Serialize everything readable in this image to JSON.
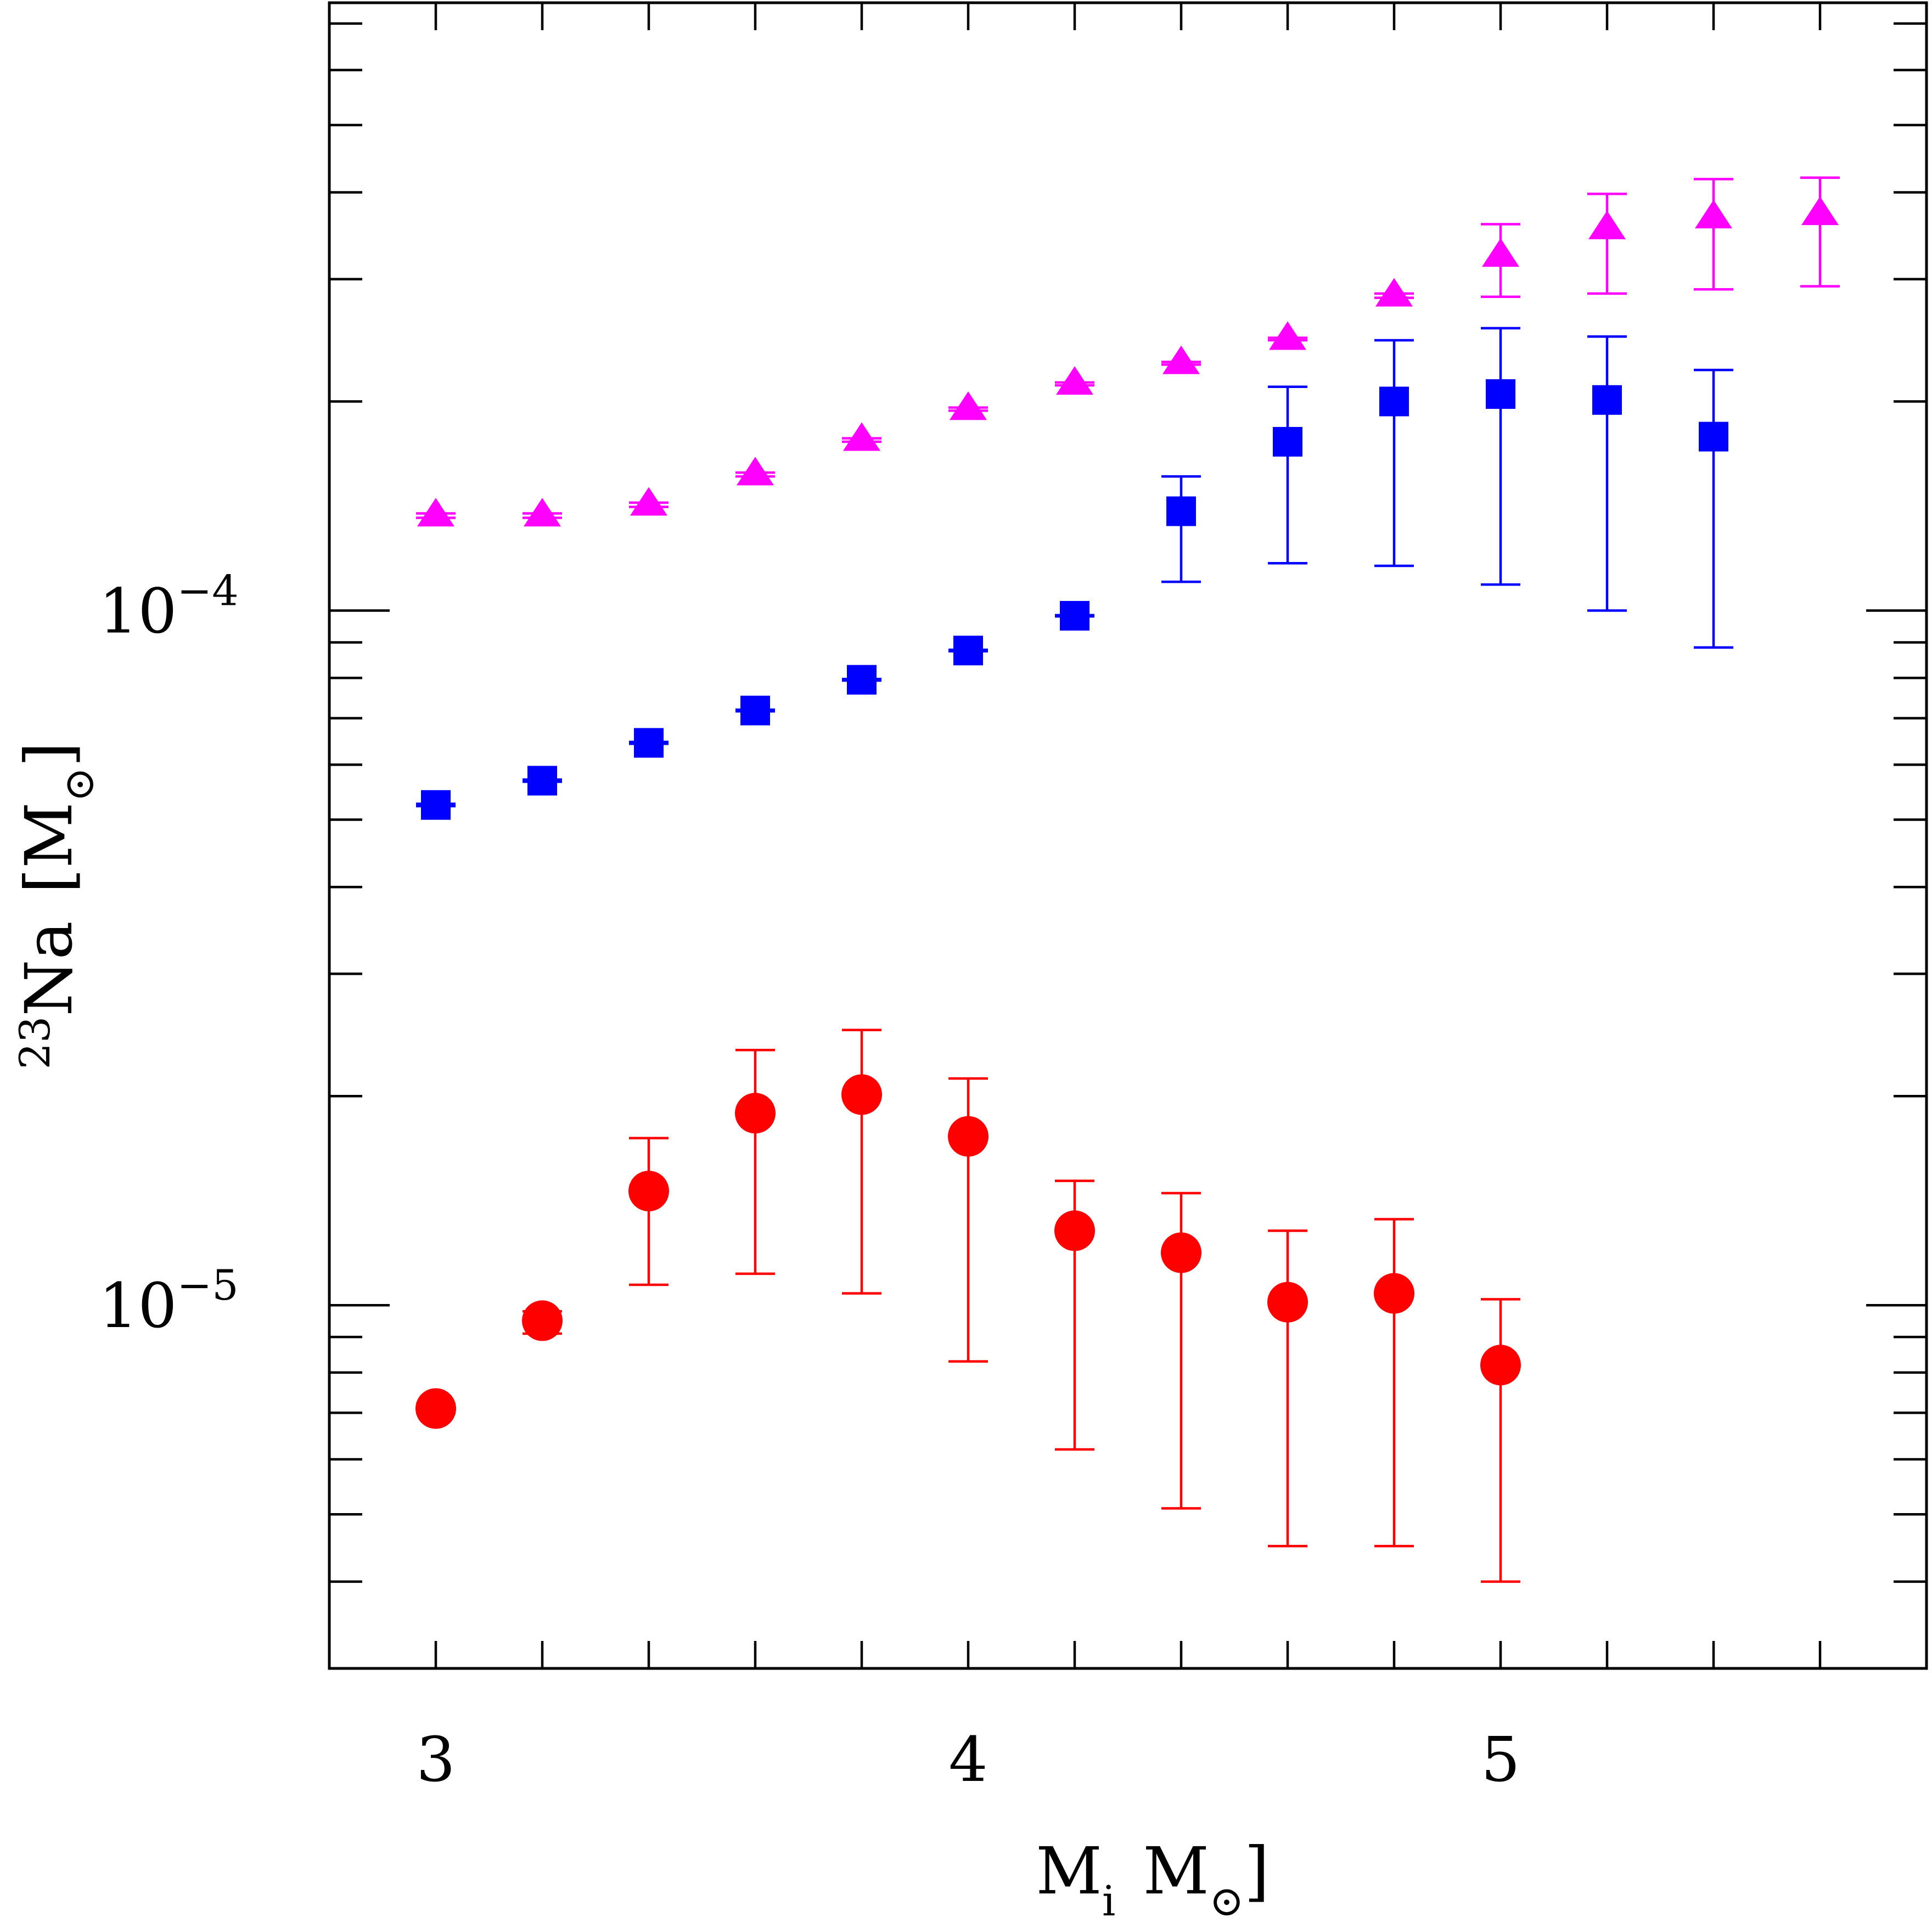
{
  "chart_data": {
    "type": "scatter",
    "title": "",
    "xlabel": {
      "main": "M",
      "sub": "i",
      "unit_main": "M",
      "unit_symbol": "⊙",
      "bracket_close": "]"
    },
    "ylabel": {
      "isotope_mass": "23",
      "element": "Na",
      "bracket_open": "[",
      "unit_main": "M",
      "unit_symbol": "⊙",
      "bracket_close": "]"
    },
    "xlim": [
      2.8,
      5.8
    ],
    "ylim": [
      3e-06,
      0.00075
    ],
    "yscale": "log",
    "x_ticks": [
      {
        "value": 3,
        "label": "3"
      },
      {
        "value": 4,
        "label": "4"
      },
      {
        "value": 5,
        "label": "5"
      }
    ],
    "y_ticks": [
      {
        "value": 1e-05,
        "base": "10",
        "exp": "−5"
      },
      {
        "value": 0.0001,
        "base": "10",
        "exp": "−4"
      }
    ],
    "grid": false,
    "series": [
      {
        "name": "triangles",
        "marker": "triangle",
        "color": "#ff00ff",
        "points": [
          {
            "x": 3.0,
            "y": 0.000137,
            "lo": 0.000136,
            "hi": 0.000138
          },
          {
            "x": 3.2,
            "y": 0.000137,
            "lo": 0.000136,
            "hi": 0.000138
          },
          {
            "x": 3.4,
            "y": 0.000142,
            "lo": 0.000141,
            "hi": 0.000143
          },
          {
            "x": 3.6,
            "y": 0.000157,
            "lo": 0.000156,
            "hi": 0.000158
          },
          {
            "x": 3.8,
            "y": 0.000176,
            "lo": 0.000175,
            "hi": 0.000177
          },
          {
            "x": 4.0,
            "y": 0.000195,
            "lo": 0.000194,
            "hi": 0.000196
          },
          {
            "x": 4.2,
            "y": 0.000212,
            "lo": 0.000211,
            "hi": 0.000213
          },
          {
            "x": 4.4,
            "y": 0.000227,
            "lo": 0.000226,
            "hi": 0.000228
          },
          {
            "x": 4.6,
            "y": 0.000246,
            "lo": 0.000245,
            "hi": 0.000247
          },
          {
            "x": 4.8,
            "y": 0.000284,
            "lo": 0.000282,
            "hi": 0.000286
          },
          {
            "x": 5.0,
            "y": 0.000324,
            "lo": 0.000283,
            "hi": 0.00036
          },
          {
            "x": 5.2,
            "y": 0.000355,
            "lo": 0.000286,
            "hi": 0.000398
          },
          {
            "x": 5.4,
            "y": 0.000368,
            "lo": 0.00029,
            "hi": 0.000418
          },
          {
            "x": 5.6,
            "y": 0.000372,
            "lo": 0.000293,
            "hi": 0.00042
          }
        ]
      },
      {
        "name": "squares",
        "marker": "square",
        "color": "#0000ff",
        "points": [
          {
            "x": 3.0,
            "y": 5.25e-05,
            "lo": 5.23e-05,
            "hi": 5.27e-05
          },
          {
            "x": 3.2,
            "y": 5.69e-05,
            "lo": 5.67e-05,
            "hi": 5.71e-05
          },
          {
            "x": 3.4,
            "y": 6.45e-05,
            "lo": 6.43e-05,
            "hi": 6.47e-05
          },
          {
            "x": 3.6,
            "y": 7.18e-05,
            "lo": 7.16e-05,
            "hi": 7.2e-05
          },
          {
            "x": 3.8,
            "y": 7.95e-05,
            "lo": 7.93e-05,
            "hi": 7.97e-05
          },
          {
            "x": 4.0,
            "y": 8.76e-05,
            "lo": 8.74e-05,
            "hi": 8.78e-05
          },
          {
            "x": 4.2,
            "y": 9.83e-05,
            "lo": 9.81e-05,
            "hi": 9.85e-05
          },
          {
            "x": 4.4,
            "y": 0.000139,
            "lo": 0.00011,
            "hi": 0.000156
          },
          {
            "x": 4.6,
            "y": 0.000175,
            "lo": 0.000117,
            "hi": 0.00021
          },
          {
            "x": 4.8,
            "y": 0.0002,
            "lo": 0.000116,
            "hi": 0.000245
          },
          {
            "x": 5.0,
            "y": 0.000205,
            "lo": 0.000109,
            "hi": 0.000255
          },
          {
            "x": 5.2,
            "y": 0.000201,
            "lo": 0.0001,
            "hi": 0.000248
          },
          {
            "x": 5.4,
            "y": 0.000178,
            "lo": 8.85e-05,
            "hi": 0.000222
          }
        ]
      },
      {
        "name": "circles",
        "marker": "circle",
        "color": "#ff0000",
        "points": [
          {
            "x": 3.0,
            "y": 7.1e-06,
            "lo": 7e-06,
            "hi": 7.2e-06
          },
          {
            "x": 3.2,
            "y": 9.5e-06,
            "lo": 9.1e-06,
            "hi": 9.8e-06
          },
          {
            "x": 3.4,
            "y": 1.46e-05,
            "lo": 1.07e-05,
            "hi": 1.74e-05
          },
          {
            "x": 3.6,
            "y": 1.89e-05,
            "lo": 1.11e-05,
            "hi": 2.33e-05
          },
          {
            "x": 3.8,
            "y": 2.01e-05,
            "lo": 1.04e-05,
            "hi": 2.49e-05
          },
          {
            "x": 4.0,
            "y": 1.75e-05,
            "lo": 8.3e-06,
            "hi": 2.12e-05
          },
          {
            "x": 4.2,
            "y": 1.28e-05,
            "lo": 6.2e-06,
            "hi": 1.51e-05
          },
          {
            "x": 4.4,
            "y": 1.19e-05,
            "lo": 5.1e-06,
            "hi": 1.45e-05
          },
          {
            "x": 4.6,
            "y": 1.01e-05,
            "lo": 4.5e-06,
            "hi": 1.28e-05
          },
          {
            "x": 4.8,
            "y": 1.04e-05,
            "lo": 4.5e-06,
            "hi": 1.33e-05
          },
          {
            "x": 5.0,
            "y": 8.2e-06,
            "lo": 4e-06,
            "hi": 1.02e-05
          }
        ]
      }
    ]
  }
}
